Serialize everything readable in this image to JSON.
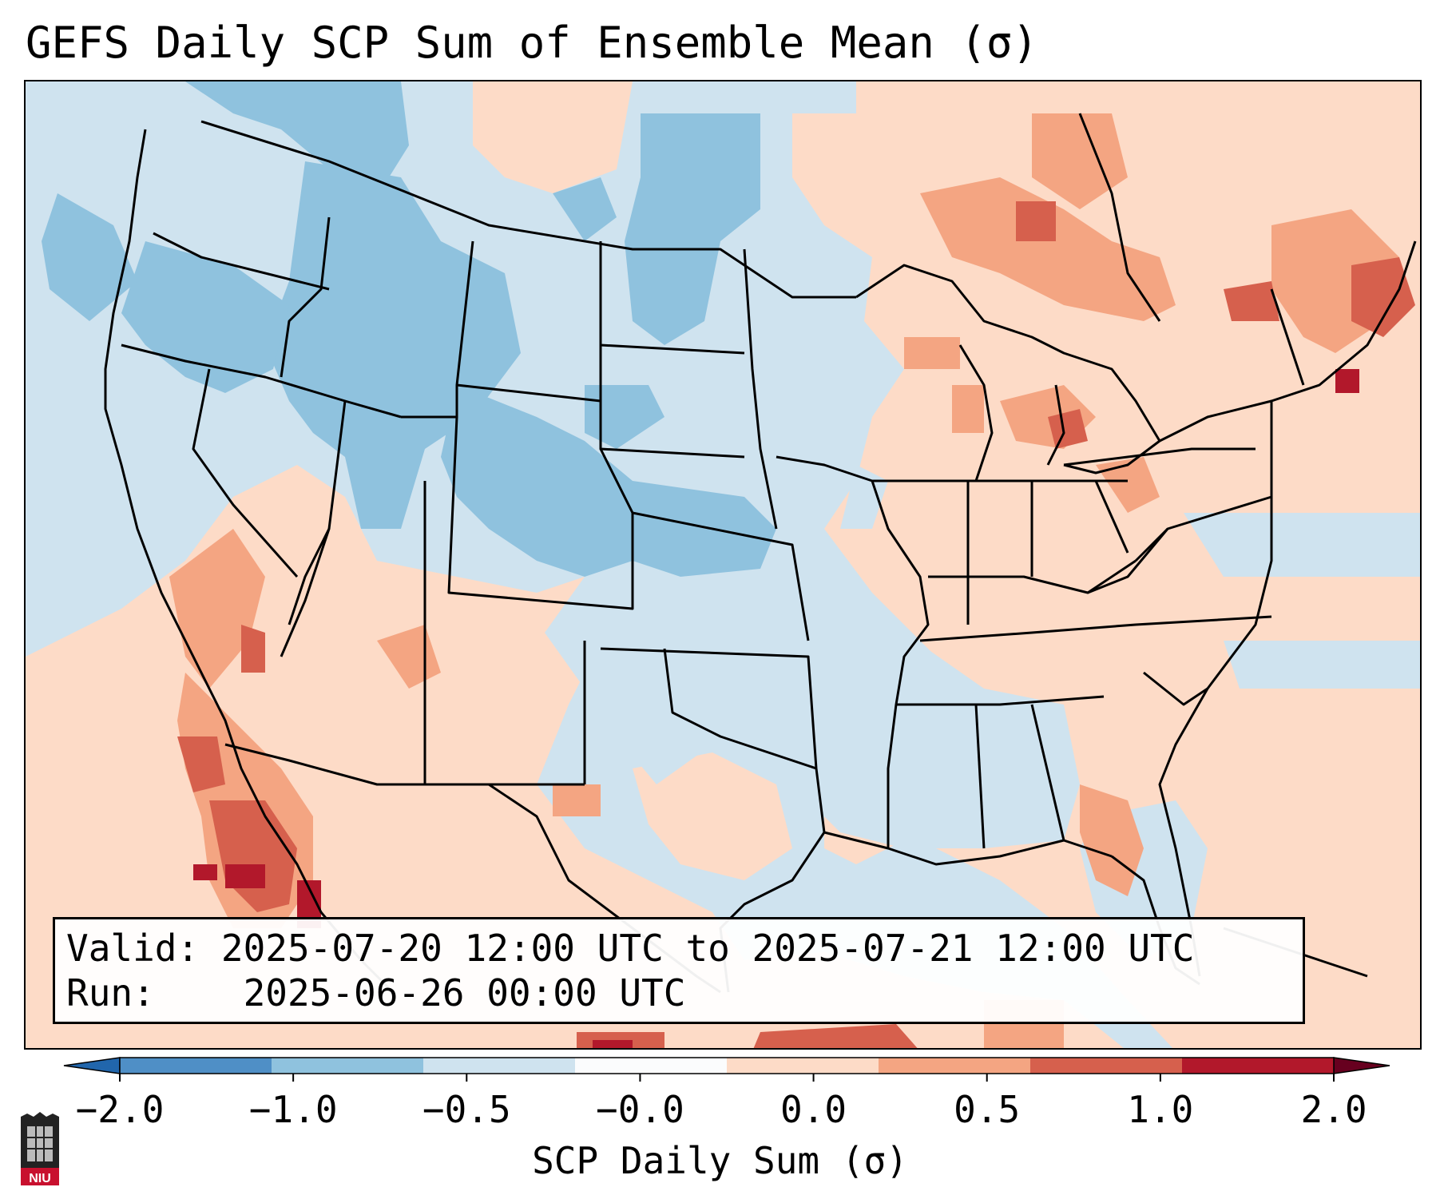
{
  "header": {
    "title": "GEFS Daily SCP Sum of Ensemble Mean (σ)"
  },
  "info": {
    "valid_label": "Valid:",
    "valid_value": "2025-07-20 12:00 UTC to 2025-07-21 12:00 UTC",
    "run_label": "Run:",
    "run_value": "2025-06-26 00:00 UTC"
  },
  "colorbar": {
    "label": "SCP Daily Sum (σ)",
    "ticks": [
      "−2.0",
      "−1.0",
      "−0.5",
      "−0.0",
      "0.0",
      "0.5",
      "1.0",
      "2.0"
    ],
    "colors": [
      "#4f8fc6",
      "#8fc2de",
      "#cfe3ef",
      "#fbfcfd",
      "#fddbc7",
      "#f4a582",
      "#d6604d",
      "#b2182b"
    ],
    "extend": "both"
  },
  "legend_colors": {
    "strong_negative": "#8fc2de",
    "weak_negative": "#cfe3ef",
    "weak_positive": "#fddbc7",
    "moderate_positive": "#f4a582",
    "strong_positive": "#d6604d",
    "extreme_positive": "#b2182b",
    "state_borders": "#000000"
  },
  "logo": {
    "text": "NIU"
  }
}
